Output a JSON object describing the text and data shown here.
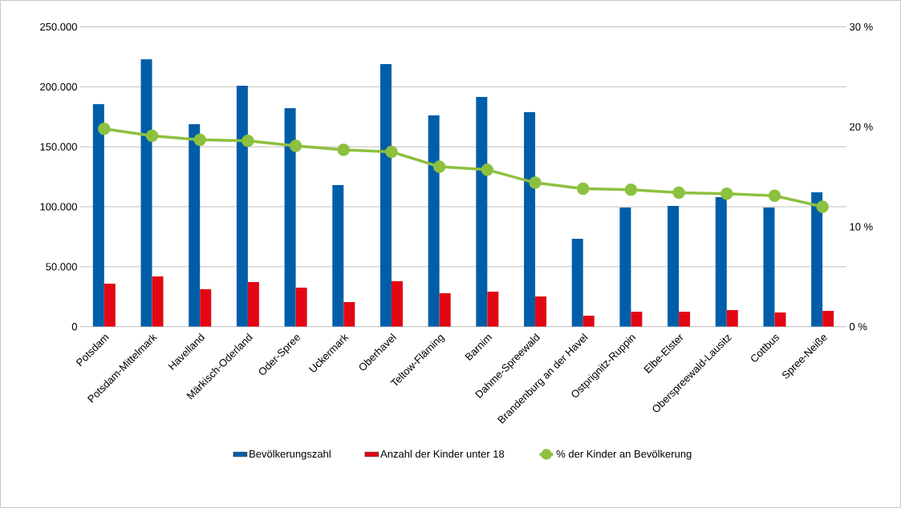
{
  "chart_data": {
    "type": "bar",
    "categories": [
      "Potsdam",
      "Potsdam-Mittelmark",
      "Havelland",
      "Märkisch-Oderland",
      "Oder-Spree",
      "Uckermark",
      "Oberhavel",
      "Teltow-Fläming",
      "Barnim",
      "Dahme-Spreewald",
      "Brandenburg an der Havel",
      "Ostprignitz-Ruppin",
      "Elbe-Elster",
      "Oberspreewald-Lausitz",
      "Cottbus",
      "Spree-Neiße"
    ],
    "series": [
      {
        "name": "Bevölkerungszahl",
        "color": "#005ea8",
        "values": [
          185500,
          222900,
          168800,
          200900,
          182200,
          118000,
          218900,
          176200,
          191500,
          178800,
          73300,
          99300,
          100700,
          108000,
          99300,
          112000
        ]
      },
      {
        "name": "Anzahl der Kinder unter 18",
        "color": "#e30613",
        "values": [
          35900,
          41900,
          31200,
          37200,
          32500,
          20500,
          37900,
          27900,
          29200,
          25200,
          9200,
          12500,
          12500,
          13800,
          11800,
          13200
        ]
      },
      {
        "name": "% der Kinder an Bevölkerung",
        "type": "line",
        "axis": "y2",
        "color": "#8dc03f",
        "marker": "circle",
        "values": [
          19.8,
          19.1,
          18.7,
          18.6,
          18.1,
          17.7,
          17.5,
          16.0,
          15.7,
          14.4,
          13.8,
          13.7,
          13.4,
          13.3,
          13.1,
          12.0
        ]
      }
    ],
    "ylim": [
      0,
      250000
    ],
    "yticks": [
      {
        "value": 0,
        "label": "0"
      },
      {
        "value": 50000,
        "label": "50.000"
      },
      {
        "value": 100000,
        "label": "100.000"
      },
      {
        "value": 150000,
        "label": "150.000"
      },
      {
        "value": 200000,
        "label": "200.000"
      },
      {
        "value": 250000,
        "label": "250.000"
      }
    ],
    "y2lim": [
      0,
      30
    ],
    "y2ticks": [
      {
        "value": 0,
        "label": "0 %"
      },
      {
        "value": 10,
        "label": "10 %"
      },
      {
        "value": 20,
        "label": "20 %"
      },
      {
        "value": 30,
        "label": "30 %"
      }
    ],
    "grid": "y",
    "legend": "bottom"
  }
}
